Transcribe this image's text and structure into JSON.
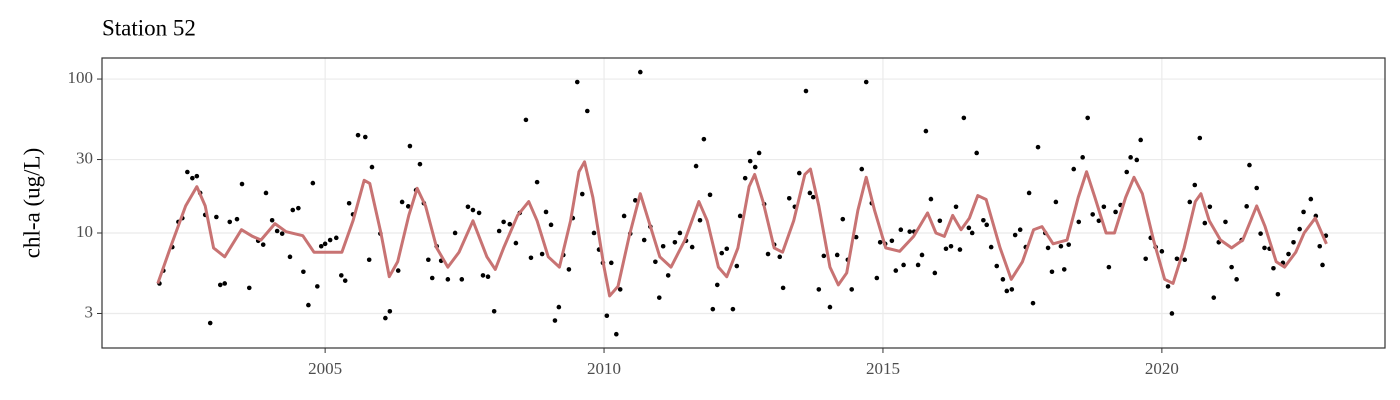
{
  "chart_data": {
    "type": "scatter",
    "title": "Station 52",
    "y_label": "chl-a (ug/L)",
    "ylog": true,
    "grid": true,
    "xlim": [
      2001.0,
      2024.0
    ],
    "xticks": [
      2005,
      2010,
      2015,
      2020
    ],
    "ylim": [
      1.79,
      137
    ],
    "yticks": [
      3,
      10,
      30,
      100
    ],
    "point_color": "#000000",
    "x": [
      2002.03,
      2002.1,
      2002.26,
      2002.37,
      2002.44,
      2002.53,
      2002.62,
      2002.7,
      2002.76,
      2002.85,
      2002.94,
      2003.05,
      2003.12,
      2003.2,
      2003.29,
      2003.42,
      2003.51,
      2003.64,
      2003.8,
      2003.89,
      2003.94,
      2004.05,
      2004.14,
      2004.23,
      2004.37,
      2004.42,
      2004.52,
      2004.61,
      2004.7,
      2004.78,
      2004.86,
      2004.93,
      2005.0,
      2005.09,
      2005.2,
      2005.29,
      2005.36,
      2005.43,
      2005.5,
      2005.59,
      2005.72,
      2005.79,
      2005.84,
      2005.99,
      2006.08,
      2006.16,
      2006.31,
      2006.38,
      2006.49,
      2006.52,
      2006.63,
      2006.7,
      2006.77,
      2006.85,
      2006.92,
      2007.0,
      2007.08,
      2007.2,
      2007.33,
      2007.45,
      2007.56,
      2007.65,
      2007.76,
      2007.83,
      2007.92,
      2008.03,
      2008.12,
      2008.2,
      2008.31,
      2008.42,
      2008.49,
      2008.6,
      2008.69,
      2008.8,
      2008.89,
      2008.96,
      2009.05,
      2009.12,
      2009.19,
      2009.27,
      2009.37,
      2009.44,
      2009.52,
      2009.61,
      2009.7,
      2009.82,
      2009.91,
      2009.98,
      2010.05,
      2010.13,
      2010.22,
      2010.29,
      2010.36,
      2010.47,
      2010.56,
      2010.65,
      2010.72,
      2010.83,
      2010.92,
      2010.99,
      2011.06,
      2011.15,
      2011.27,
      2011.36,
      2011.47,
      2011.58,
      2011.65,
      2011.72,
      2011.79,
      2011.9,
      2011.95,
      2012.03,
      2012.11,
      2012.2,
      2012.31,
      2012.38,
      2012.44,
      2012.53,
      2012.62,
      2012.71,
      2012.78,
      2012.87,
      2012.94,
      2013.05,
      2013.15,
      2013.21,
      2013.32,
      2013.42,
      2013.5,
      2013.62,
      2013.69,
      2013.75,
      2013.85,
      2013.94,
      2014.05,
      2014.18,
      2014.28,
      2014.37,
      2014.44,
      2014.52,
      2014.62,
      2014.7,
      2014.8,
      2014.89,
      2014.95,
      2015.04,
      2015.16,
      2015.23,
      2015.32,
      2015.37,
      2015.48,
      2015.56,
      2015.63,
      2015.7,
      2015.77,
      2015.86,
      2015.93,
      2016.02,
      2016.13,
      2016.22,
      2016.31,
      2016.38,
      2016.45,
      2016.54,
      2016.6,
      2016.68,
      2016.8,
      2016.86,
      2016.94,
      2017.04,
      2017.15,
      2017.22,
      2017.31,
      2017.37,
      2017.46,
      2017.56,
      2017.62,
      2017.69,
      2017.78,
      2017.91,
      2017.96,
      2018.03,
      2018.1,
      2018.19,
      2018.25,
      2018.33,
      2018.42,
      2018.51,
      2018.58,
      2018.67,
      2018.76,
      2018.87,
      2018.96,
      2019.05,
      2019.17,
      2019.26,
      2019.37,
      2019.44,
      2019.55,
      2019.62,
      2019.71,
      2019.8,
      2019.89,
      2020.0,
      2020.11,
      2020.18,
      2020.27,
      2020.41,
      2020.5,
      2020.59,
      2020.68,
      2020.77,
      2020.86,
      2020.93,
      2021.02,
      2021.14,
      2021.25,
      2021.34,
      2021.43,
      2021.52,
      2021.57,
      2021.7,
      2021.77,
      2021.84,
      2021.93,
      2022.0,
      2022.08,
      2022.17,
      2022.27,
      2022.36,
      2022.47,
      2022.54,
      2022.67,
      2022.76,
      2022.83,
      2022.88,
      2022.94
    ],
    "values": [
      4.7,
      5.7,
      8.1,
      11.8,
      12.5,
      24.9,
      22.7,
      23.4,
      18.2,
      13.1,
      2.6,
      12.7,
      4.6,
      4.7,
      11.8,
      12.3,
      20.8,
      4.4,
      8.9,
      8.4,
      18.2,
      12.1,
      10.3,
      9.9,
      7.0,
      14.1,
      14.5,
      5.6,
      3.4,
      21.1,
      4.5,
      8.2,
      8.5,
      9.0,
      9.3,
      5.3,
      4.9,
      15.6,
      13.2,
      43.2,
      42.0,
      6.7,
      26.8,
      9.9,
      2.8,
      3.1,
      5.7,
      15.9,
      14.9,
      36.7,
      19.0,
      28.0,
      15.6,
      6.7,
      5.1,
      8.2,
      6.6,
      5.0,
      10,
      5.0,
      14.8,
      14.1,
      13.5,
      5.3,
      5.2,
      3.1,
      10.3,
      11.8,
      11.4,
      8.6,
      13.5,
      54.3,
      6.9,
      21.4,
      7.3,
      13.7,
      11.3,
      2.7,
      3.3,
      7.2,
      5.8,
      12.5,
      95.6,
      17.9,
      62.0,
      10,
      7.8,
      6.4,
      2.9,
      6.4,
      2.2,
      4.3,
      12.9,
      9.9,
      16.3,
      111,
      9.0,
      11,
      6.5,
      3.8,
      8.2,
      5.3,
      8.7,
      10,
      8.9,
      8.1,
      27.2,
      12.1,
      40.7,
      17.7,
      3.2,
      4.6,
      7.4,
      7.9,
      3.2,
      6.1,
      12.9,
      22.7,
      29.3,
      26.8,
      33.1,
      15.4,
      7.3,
      8.4,
      7.0,
      4.4,
      16.8,
      14.8,
      24.5,
      83.6,
      18.2,
      17.1,
      4.3,
      7.1,
      3.3,
      7.2,
      12.3,
      6.7,
      4.3,
      9.4,
      26,
      95.6,
      15.6,
      5.1,
      8.7,
      8.5,
      8.9,
      5.7,
      10.5,
      6.2,
      10.2,
      10.2,
      6.2,
      7.2,
      45.9,
      16.6,
      5.5,
      12,
      7.9,
      8.2,
      14.8,
      7.8,
      55.9,
      10.8,
      10,
      33.1,
      12.1,
      11.3,
      8.1,
      6.1,
      5.0,
      4.2,
      4.3,
      9.7,
      10.5,
      8.1,
      18.2,
      3.5,
      36.1,
      10,
      8.0,
      5.6,
      15.9,
      8.2,
      5.8,
      8.4,
      26,
      11.8,
      31,
      55.9,
      13.2,
      12,
      14.8,
      6.0,
      13.7,
      15.2,
      24.9,
      31,
      29.8,
      40.2,
      6.8,
      9.3,
      8.1,
      7.6,
      4.5,
      3.0,
      6.8,
      6.7,
      15.9,
      20.5,
      41.4,
      11.6,
      14.8,
      3.8,
      8.7,
      11.8,
      6.0,
      5.0,
      9.0,
      14.9,
      27.6,
      19.6,
      9.9,
      8.0,
      7.9,
      5.9,
      4.0,
      6.4,
      7.3,
      8.7,
      10.6,
      13.7,
      16.6,
      12.9,
      8.2,
      6.2,
      9.6
    ],
    "trend": {
      "color": "#c87373",
      "x": [
        2002.0,
        2002.25,
        2002.5,
        2002.7,
        2002.85,
        2003.0,
        2003.2,
        2003.5,
        2003.7,
        2003.85,
        2004.1,
        2004.3,
        2004.6,
        2004.8,
        2005.1,
        2005.3,
        2005.5,
        2005.7,
        2005.8,
        2006.0,
        2006.15,
        2006.3,
        2006.5,
        2006.65,
        2006.8,
        2007.0,
        2007.2,
        2007.4,
        2007.65,
        2007.9,
        2008.05,
        2008.2,
        2008.45,
        2008.65,
        2008.8,
        2009.0,
        2009.2,
        2009.4,
        2009.55,
        2009.65,
        2009.8,
        2010.0,
        2010.1,
        2010.25,
        2010.45,
        2010.65,
        2010.8,
        2011.0,
        2011.2,
        2011.45,
        2011.7,
        2011.85,
        2012.05,
        2012.2,
        2012.4,
        2012.6,
        2012.7,
        2012.85,
        2013.05,
        2013.2,
        2013.4,
        2013.6,
        2013.7,
        2013.85,
        2014.05,
        2014.2,
        2014.35,
        2014.55,
        2014.7,
        2014.85,
        2015.05,
        2015.3,
        2015.55,
        2015.8,
        2015.95,
        2016.1,
        2016.25,
        2016.4,
        2016.55,
        2016.7,
        2016.85,
        2017.1,
        2017.3,
        2017.5,
        2017.7,
        2017.85,
        2018.05,
        2018.3,
        2018.5,
        2018.65,
        2018.8,
        2019.0,
        2019.15,
        2019.35,
        2019.5,
        2019.65,
        2019.85,
        2020.05,
        2020.2,
        2020.4,
        2020.6,
        2020.7,
        2020.85,
        2021.05,
        2021.25,
        2021.45,
        2021.7,
        2021.85,
        2022.05,
        2022.2,
        2022.4,
        2022.55,
        2022.75,
        2022.95
      ],
      "values": [
        4.7,
        8.5,
        15,
        20,
        15,
        8,
        7,
        10.5,
        9.5,
        9,
        11.5,
        10.2,
        9.6,
        7.5,
        7.5,
        7.5,
        12,
        22,
        21,
        10,
        5.2,
        6.5,
        13,
        19.5,
        15,
        8,
        6,
        7.5,
        12,
        7,
        5.8,
        8,
        13,
        16,
        12,
        7,
        6,
        12,
        25,
        29,
        17,
        6,
        3.9,
        4.5,
        9.5,
        18,
        12,
        7,
        6,
        9,
        16,
        12,
        6,
        5.2,
        8,
        20,
        24,
        16,
        8,
        7.5,
        12,
        24,
        26,
        15,
        6,
        4.6,
        5.5,
        14,
        23,
        14,
        8,
        7.6,
        9.5,
        13.5,
        10,
        9.5,
        13,
        10.5,
        12.5,
        17.5,
        16.5,
        8,
        5,
        6.5,
        10.5,
        11,
        8.5,
        9,
        17,
        25,
        17,
        10,
        10,
        17,
        23,
        18,
        9,
        5,
        4.7,
        8,
        16,
        18,
        12,
        9,
        8,
        9,
        15,
        11,
        6.5,
        6,
        7.5,
        10,
        12.5,
        8.5
      ]
    }
  }
}
